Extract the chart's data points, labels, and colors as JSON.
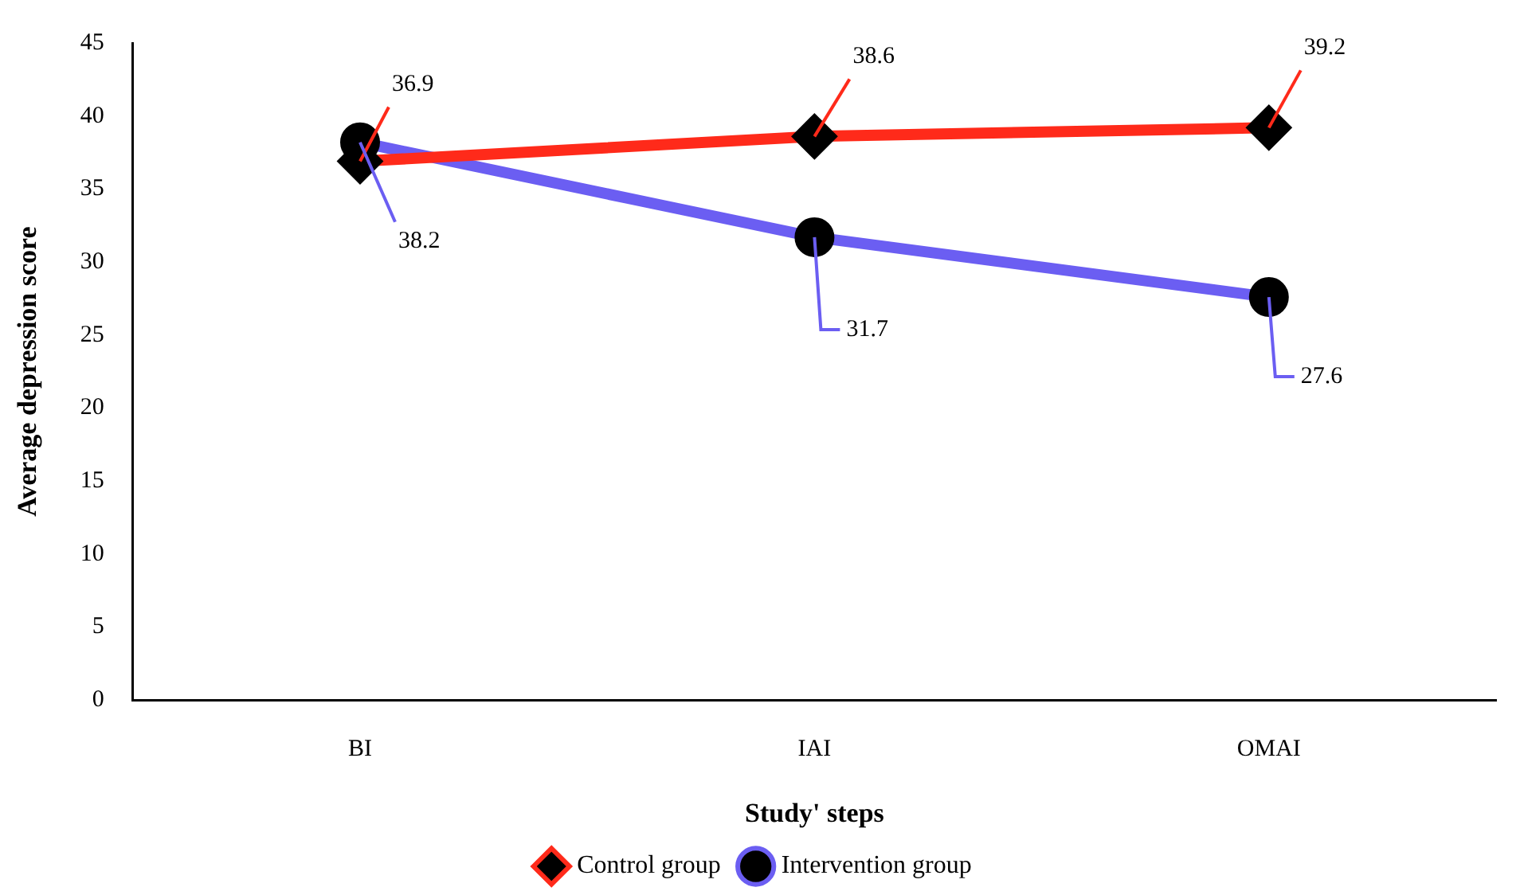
{
  "chart_data": {
    "type": "line",
    "xlabel": "Study' steps",
    "ylabel": "Average depression score",
    "categories": [
      "BI",
      "IAI",
      "OMAI"
    ],
    "series": [
      {
        "name": "Control group",
        "color": "#ff2a1a",
        "values": [
          36.9,
          38.6,
          39.2
        ],
        "marker": "diamond"
      },
      {
        "name": "Intervention group",
        "color": "#6b5ef2",
        "values": [
          38.2,
          31.7,
          27.6
        ],
        "marker": "circle"
      }
    ],
    "ylim": [
      0,
      45
    ],
    "yticks": [
      0,
      5,
      10,
      15,
      20,
      25,
      30,
      35,
      40,
      45
    ],
    "grid": false,
    "legend": "bottom",
    "data_labels": true,
    "line_style": "solid"
  }
}
